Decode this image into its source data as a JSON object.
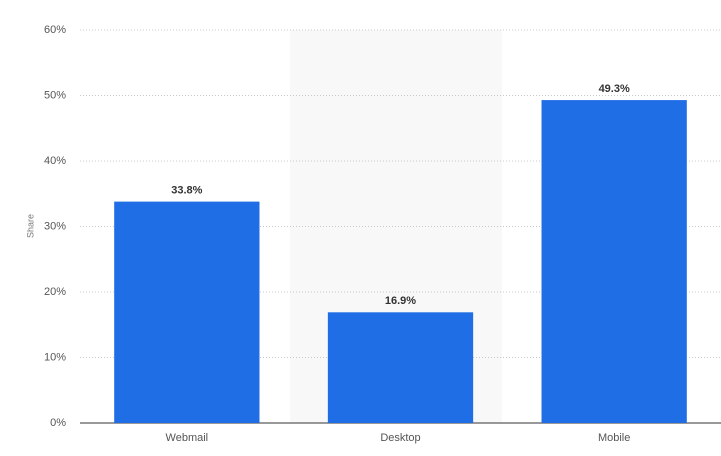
{
  "chart_data": {
    "type": "bar",
    "y_label": "Share",
    "categories": [
      "Webmail",
      "Desktop",
      "Mobile"
    ],
    "values": [
      33.8,
      16.9,
      49.3
    ],
    "value_labels": [
      "33.8%",
      "16.9%",
      "49.3%"
    ],
    "color": "#1f6ee5",
    "ylim": [
      0,
      60
    ],
    "yticks": [
      {
        "value": 0,
        "label": "0%"
      },
      {
        "value": 10,
        "label": "10%"
      },
      {
        "value": 20,
        "label": "20%"
      },
      {
        "value": 30,
        "label": "30%"
      },
      {
        "value": 40,
        "label": "40%"
      },
      {
        "value": 50,
        "label": "50%"
      },
      {
        "value": 60,
        "label": "60%"
      }
    ],
    "grid": true
  }
}
